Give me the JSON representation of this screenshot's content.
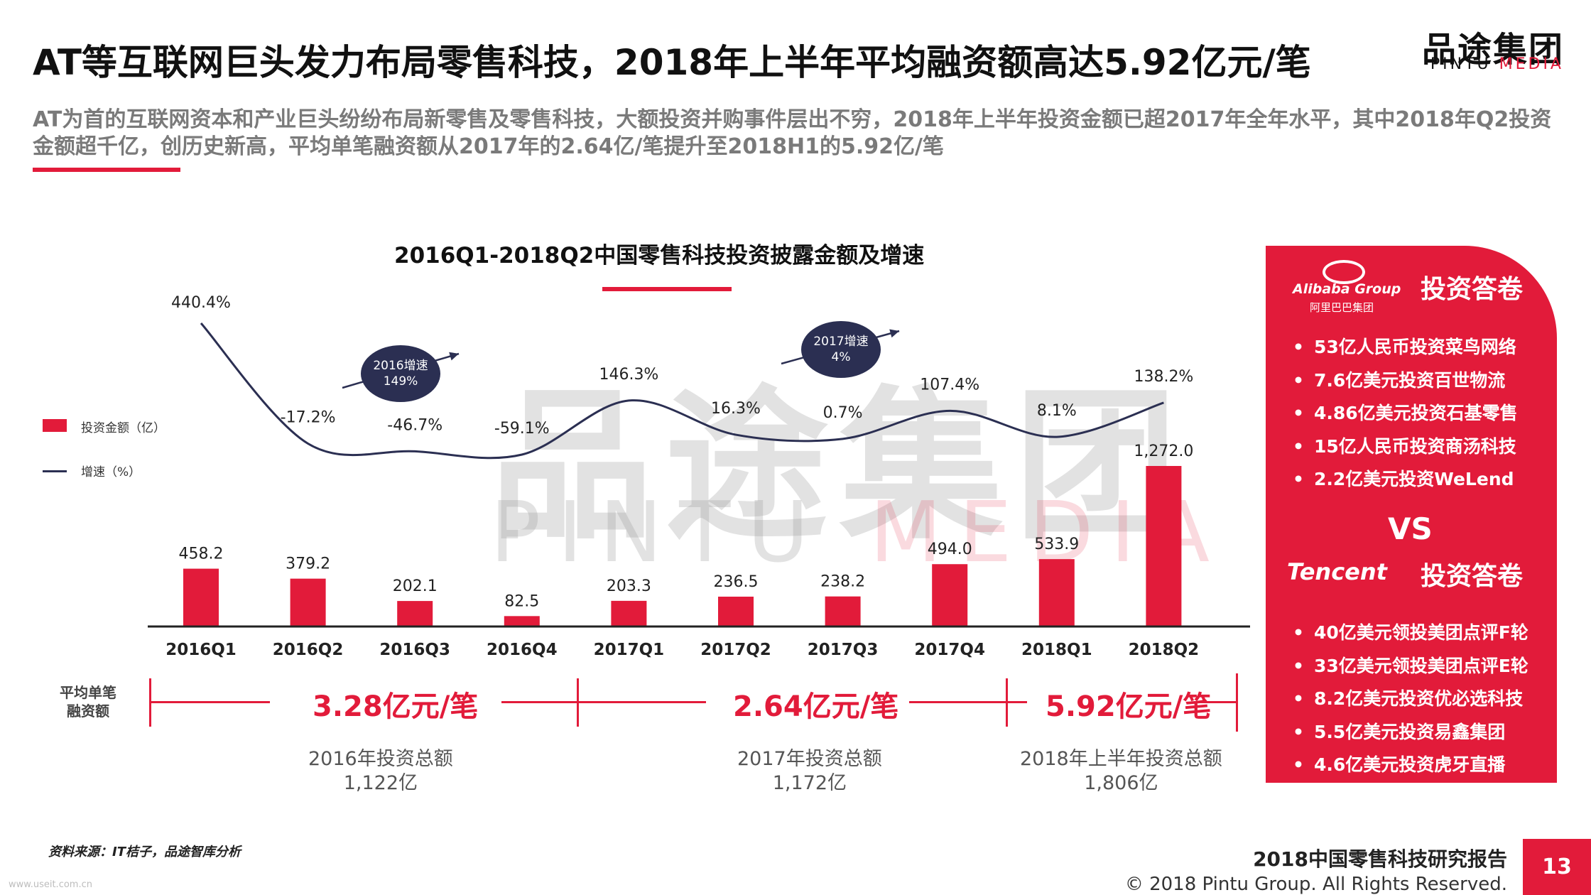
{
  "header": {
    "title": "AT等互联网巨头发力布局零售科技，2018年上半年平均融资额高达5.92亿元/笔",
    "subtitle": "AT为首的互联网资本和产业巨头纷纷布局新零售及零售科技，大额投资并购事件层出不穷，2018年上半年投资金额已超2017年全年水平，其中2018年Q2投资金额超千亿，创历史新高，平均单笔融资额从2017年的2.64亿/笔提升至2018H1的5.92亿/笔",
    "logo_cn": "品途集团",
    "logo_en_1": "PINTU",
    "logo_en_2": "MEDIA"
  },
  "watermark": {
    "cn": "品途集团",
    "en_1": "PINTU",
    "en_2": "MEDIA"
  },
  "chart_data": {
    "type": "bar",
    "title": "2016Q1-2018Q2中国零售科技投资披露金额及增速",
    "categories": [
      "2016Q1",
      "2016Q2",
      "2016Q3",
      "2016Q4",
      "2017Q1",
      "2017Q2",
      "2017Q3",
      "2017Q4",
      "2018Q1",
      "2018Q2"
    ],
    "series": [
      {
        "name": "投资金额（亿）",
        "type": "bar",
        "color": "#e21b3a",
        "values": [
          458.2,
          379.2,
          202.1,
          82.5,
          203.3,
          236.5,
          238.2,
          494.0,
          533.9,
          1272.0
        ],
        "labels": [
          "458.2",
          "379.2",
          "202.1",
          "82.5",
          "203.3",
          "236.5",
          "238.2",
          "494.0",
          "533.9",
          "1,272.0"
        ]
      },
      {
        "name": "增速（%）",
        "type": "line",
        "color": "#2b2f52",
        "values": [
          440.4,
          -17.2,
          -46.7,
          -59.1,
          146.3,
          16.3,
          0.7,
          107.4,
          8.1,
          138.2
        ],
        "labels": [
          "440.4%",
          "-17.2%",
          "-46.7%",
          "-59.1%",
          "146.3%",
          "16.3%",
          "0.7%",
          "107.4%",
          "8.1%",
          "138.2%"
        ]
      }
    ],
    "legend": {
      "bar": "投资金额（亿）",
      "line": "增速（%）"
    },
    "annotations": [
      {
        "line1": "2016增速",
        "line2": "149%"
      },
      {
        "line1": "2017增速",
        "line2": "4%"
      }
    ]
  },
  "averages": {
    "label_1": "平均单笔",
    "label_2": "融资额",
    "values": [
      "3.28亿元/笔",
      "2.64亿元/笔",
      "5.92亿元/笔"
    ],
    "totals": [
      {
        "label": "2016年投资总额",
        "value": "1,122亿"
      },
      {
        "label": "2017年投资总额",
        "value": "1,172亿"
      },
      {
        "label": "2018年上半年投资总额",
        "value": "1,806亿"
      }
    ]
  },
  "panel": {
    "alibaba_logo": "Alibaba Group",
    "alibaba_logo_cn": "阿里巴巴集团",
    "heading": "投资答卷",
    "alibaba_items": [
      "53亿人民币投资菜鸟网络",
      "7.6亿美元投资百世物流",
      "4.86亿美元投资石基零售",
      "15亿人民币投资商汤科技",
      "2.2亿美元投资WeLend"
    ],
    "vs": "VS",
    "tencent_logo": "Tencent",
    "tencent_items": [
      "40亿美元领投美团点评F轮",
      "33亿美元领投美团点评E轮",
      "8.2亿美元投资优必选科技",
      "5.5亿美元投资易鑫集团",
      "4.6亿美元投资虎牙直播"
    ],
    "accent": "#e21b3a"
  },
  "footer": {
    "source": "资料来源：IT桔子，品途智库分析",
    "report": "2018中国零售科技研究报告",
    "copyright": "© 2018 Pintu Group. All Rights Reserved.",
    "page": "13",
    "url": "www.useit.com.cn"
  }
}
